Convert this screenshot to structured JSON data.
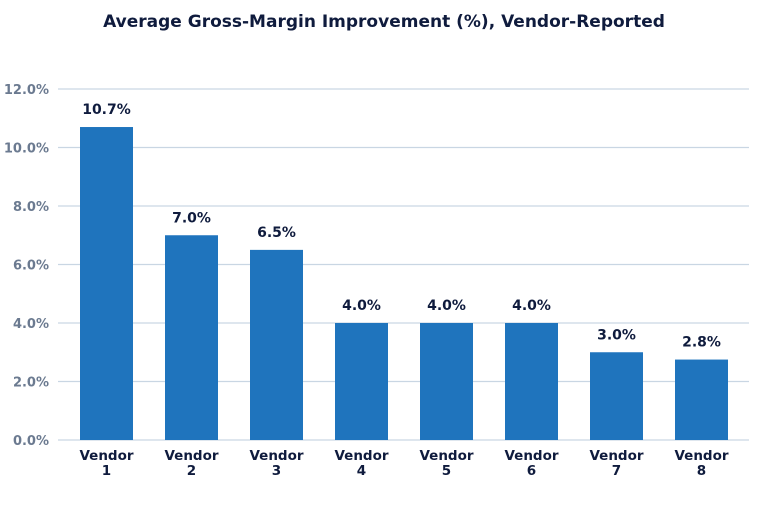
{
  "chart_data": {
    "type": "bar",
    "title": "Average Gross-Margin Improvement (%), Vendor-Reported",
    "xlabel": "",
    "ylabel": "",
    "categories": [
      [
        "Vendor",
        "1"
      ],
      [
        "Vendor",
        "2"
      ],
      [
        "Vendor",
        "3"
      ],
      [
        "Vendor",
        "4"
      ],
      [
        "Vendor",
        "5"
      ],
      [
        "Vendor",
        "6"
      ],
      [
        "Vendor",
        "7"
      ],
      [
        "Vendor",
        "8"
      ]
    ],
    "values": [
      10.7,
      7.0,
      6.5,
      4.0,
      4.0,
      4.0,
      3.0,
      2.75
    ],
    "data_labels": [
      "10.7%",
      "7.0%",
      "6.5%",
      "4.0%",
      "4.0%",
      "4.0%",
      "3.0%",
      "2.8%"
    ],
    "ylim": [
      0,
      12
    ],
    "yticks": [
      0,
      2,
      4,
      6,
      8,
      10,
      12
    ],
    "ytick_labels": [
      "0.0%",
      "2.0%",
      "4.0%",
      "6.0%",
      "8.0%",
      "10.0%",
      "12.0%"
    ],
    "grid": true,
    "legend": "none",
    "colors": {
      "bar": "#1f74bd",
      "grid": "#c9d6e3",
      "title": "#0f1b3d",
      "tick": "#6b7a90",
      "label": "#0f1b3d"
    }
  }
}
